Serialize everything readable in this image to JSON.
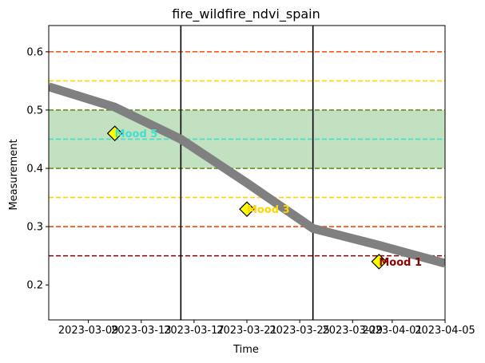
{
  "chart_data": {
    "type": "line",
    "title": "fire_wildfire_ndvi_spain",
    "xlabel": "Time",
    "ylabel": "Measurement",
    "xlim": [
      "2023-03-06",
      "2023-04-05"
    ],
    "ylim": [
      0.14,
      0.645
    ],
    "x_ticks": [
      "2023-03-09",
      "2023-03-13",
      "2023-03-17",
      "2023-03-21",
      "2023-03-25",
      "2023-03-29",
      "2023-04-01",
      "2023-04-05"
    ],
    "y_ticks": [
      "0.2",
      "0.3",
      "0.4",
      "0.5",
      "0.6"
    ],
    "grid": false,
    "legend": "none",
    "series": [
      {
        "color": "#808080",
        "x": [
          "2023-03-06",
          "2023-03-11",
          "2023-03-16",
          "2023-03-21",
          "2023-03-26",
          "2023-03-31",
          "2023-04-05"
        ],
        "y": [
          0.54,
          0.505,
          0.45,
          0.375,
          0.297,
          0.268,
          0.237
        ]
      }
    ],
    "band": {
      "y": [
        0.4,
        0.5
      ],
      "color": "#c1e1c1",
      "edge_color": "#6b8e23"
    },
    "hlines": [
      {
        "y": 0.6,
        "color": "#ff4500"
      },
      {
        "y": 0.55,
        "color": "#ffd700"
      },
      {
        "y": 0.45,
        "color": "#40e0d0"
      },
      {
        "y": 0.35,
        "color": "#ffd700"
      },
      {
        "y": 0.3,
        "color": "#ff4500"
      },
      {
        "y": 0.25,
        "color": "#8b0000"
      }
    ],
    "vlines": [
      "2023-03-16",
      "2023-03-26"
    ],
    "annotations": [
      {
        "x": "2023-03-11",
        "y": 0.46,
        "label": "Mood 5",
        "color": "#40e0d0"
      },
      {
        "x": "2023-03-21",
        "y": 0.33,
        "label": "Mood 3",
        "color": "#ffd700"
      },
      {
        "x": "2023-03-31",
        "y": 0.24,
        "label": "Mood 1",
        "color": "#8b0000"
      }
    ]
  }
}
